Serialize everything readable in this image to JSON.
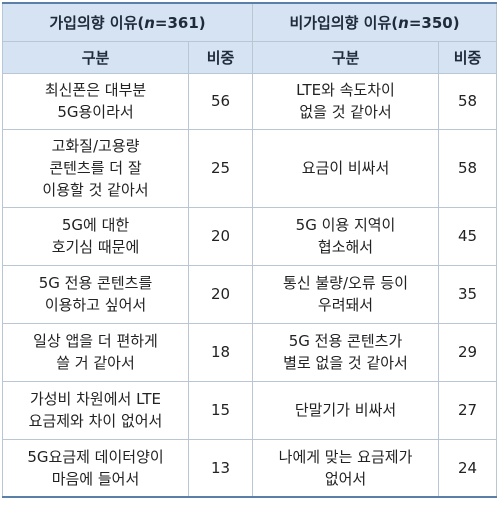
{
  "table": {
    "join_group": {
      "prefix": "가입의향 이유(",
      "n_var": "n",
      "suffix": "=361)"
    },
    "nonjoin_group": {
      "prefix": "비가입의향 이유(",
      "n_var": "n",
      "suffix": "=350)"
    },
    "col_category": "구분",
    "col_share": "비중",
    "rows": [
      {
        "join_reason": "최신폰은 대부분\n5G용이라서",
        "join_share": "56",
        "nonjoin_reason": "LTE와 속도차이\n없을 것 같아서",
        "nonjoin_share": "58"
      },
      {
        "join_reason": "고화질/고용량\n콘텐츠를 더 잘\n이용할 것 같아서",
        "join_share": "25",
        "nonjoin_reason": "요금이 비싸서",
        "nonjoin_share": "58"
      },
      {
        "join_reason": "5G에 대한\n호기심 때문에",
        "join_share": "20",
        "nonjoin_reason": "5G 이용 지역이\n협소해서",
        "nonjoin_share": "45"
      },
      {
        "join_reason": "5G 전용 콘텐츠를\n이용하고 싶어서",
        "join_share": "20",
        "nonjoin_reason": "통신 불량/오류 등이\n우려돼서",
        "nonjoin_share": "35"
      },
      {
        "join_reason": "일상 앱을 더 편하게\n쓸 거 같아서",
        "join_share": "18",
        "nonjoin_reason": "5G 전용 콘텐츠가\n별로 없을 것 같아서",
        "nonjoin_share": "29"
      },
      {
        "join_reason": "가성비 차원에서 LTE\n요금제와 차이 없어서",
        "join_share": "15",
        "nonjoin_reason": "단말기가 비싸서",
        "nonjoin_share": "27"
      },
      {
        "join_reason": "5G요금제 데이터양이\n마음에 들어서",
        "join_share": "13",
        "nonjoin_reason": "나에게 맞는 요금제가\n없어서",
        "nonjoin_share": "24"
      }
    ]
  }
}
